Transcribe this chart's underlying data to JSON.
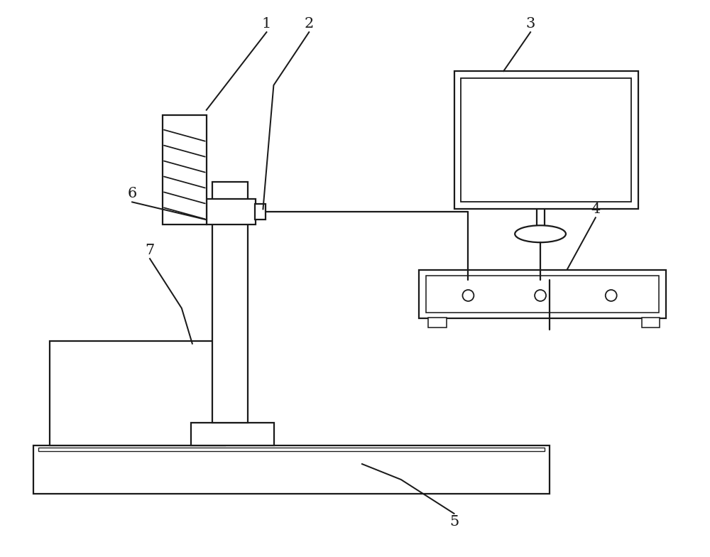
{
  "bg_color": "#ffffff",
  "line_color": "#1a1a1a",
  "lw": 1.6,
  "fig_width": 10.0,
  "fig_height": 7.84,
  "label_fontsize": 15
}
